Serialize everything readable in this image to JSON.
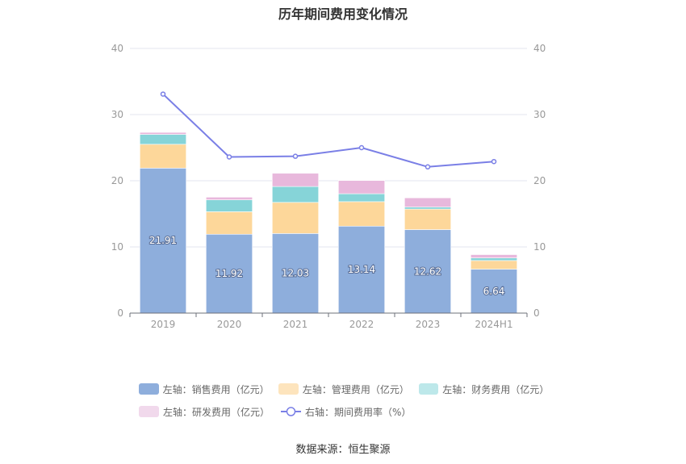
{
  "chart_data": {
    "type": "bar",
    "title": "历年期间费用变化情况",
    "categories": [
      "2019",
      "2020",
      "2021",
      "2022",
      "2023",
      "2024H1"
    ],
    "left_axis": {
      "ylim": [
        0,
        40
      ],
      "ticks": [
        "0",
        "10",
        "20",
        "30",
        "40"
      ]
    },
    "right_axis": {
      "ylim": [
        0,
        40
      ],
      "ticks": [
        "0",
        "10",
        "20",
        "30",
        "40"
      ]
    },
    "series": [
      {
        "name": "左轴：销售费用（亿元）",
        "type": "bar",
        "stack": "total",
        "color": "#8eaedc",
        "values": [
          21.91,
          11.92,
          12.03,
          13.14,
          12.62,
          6.64
        ],
        "labels": [
          "21.91",
          "11.92",
          "12.03",
          "13.14",
          "12.62",
          "6.64"
        ]
      },
      {
        "name": "左轴：管理费用（亿元）",
        "type": "bar",
        "stack": "total",
        "color": "#fdd79a",
        "values": [
          3.6,
          3.4,
          4.7,
          3.7,
          3.1,
          1.3
        ]
      },
      {
        "name": "左轴：财务费用（亿元）",
        "type": "bar",
        "stack": "total",
        "color": "#86d4d8",
        "values": [
          1.5,
          1.8,
          2.4,
          1.2,
          0.3,
          0.4
        ]
      },
      {
        "name": "左轴：研发费用（亿元）",
        "type": "bar",
        "stack": "total",
        "color": "#e8b8dc",
        "values": [
          0.3,
          0.4,
          2.0,
          2.0,
          1.4,
          0.5
        ]
      },
      {
        "name": "右轴：期间费用率（%）",
        "type": "line",
        "axis": "right",
        "color": "#7a7fe6",
        "values": [
          33.1,
          23.6,
          23.7,
          25.0,
          22.1,
          22.9
        ]
      }
    ],
    "grid": true,
    "legend_position": "bottom"
  },
  "legend": {
    "items": [
      {
        "label": "左轴：销售费用（亿元）",
        "color": "#8eaedc",
        "kind": "bar"
      },
      {
        "label": "左轴：管理费用（亿元）",
        "color": "#fde4bd",
        "kind": "bar"
      },
      {
        "label": "左轴：财务费用（亿元）",
        "color": "#bde8ea",
        "kind": "bar"
      },
      {
        "label": "左轴：研发费用（亿元）",
        "color": "#f1d9ec",
        "kind": "bar"
      },
      {
        "label": "右轴：期间费用率（%）",
        "color": "#7a7fe6",
        "kind": "line"
      }
    ]
  },
  "source": "数据来源：恒生聚源"
}
